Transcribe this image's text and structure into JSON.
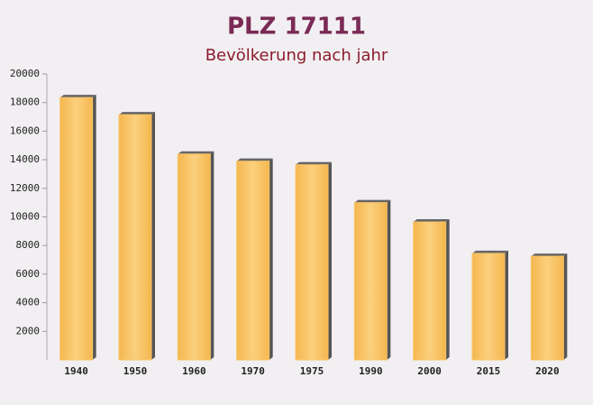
{
  "chart_data": {
    "type": "bar",
    "title": "PLZ 17111",
    "subtitle": "Bevölkerung nach jahr",
    "categories": [
      "1940",
      "1950",
      "1960",
      "1970",
      "1975",
      "1990",
      "2000",
      "2015",
      "2020"
    ],
    "values": [
      18350,
      17150,
      14400,
      13900,
      13650,
      11000,
      9650,
      7450,
      7250
    ],
    "color": "#f9c46a",
    "ylim": [
      0,
      20000
    ],
    "yticks": [
      2000,
      4000,
      6000,
      8000,
      10000,
      12000,
      14000,
      16000,
      18000,
      20000
    ]
  }
}
